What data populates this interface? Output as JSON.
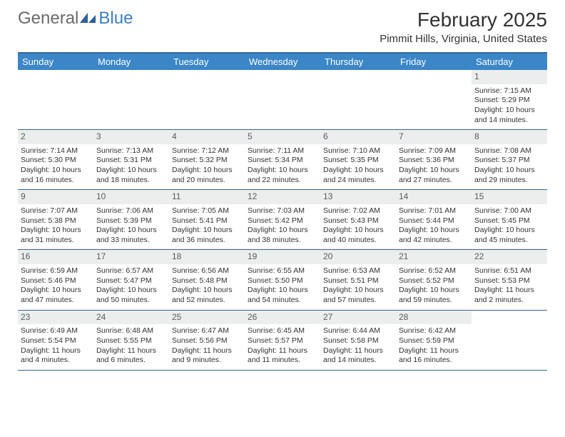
{
  "logo": {
    "text1": "General",
    "text2": "Blue"
  },
  "title": "February 2025",
  "location": "Pimmit Hills, Virginia, United States",
  "daynames": [
    "Sunday",
    "Monday",
    "Tuesday",
    "Wednesday",
    "Thursday",
    "Friday",
    "Saturday"
  ],
  "colors": {
    "header_bar": "#3b86c7",
    "rule": "#34679e",
    "daynum_bg": "#eceeee",
    "text": "#333333",
    "logo_gray": "#6a6a6a",
    "logo_blue": "#3b7fc4"
  },
  "weeks": [
    [
      null,
      null,
      null,
      null,
      null,
      null,
      {
        "n": "1",
        "sunrise": "7:15 AM",
        "sunset": "5:29 PM",
        "daylight": "10 hours and 14 minutes."
      }
    ],
    [
      {
        "n": "2",
        "sunrise": "7:14 AM",
        "sunset": "5:30 PM",
        "daylight": "10 hours and 16 minutes."
      },
      {
        "n": "3",
        "sunrise": "7:13 AM",
        "sunset": "5:31 PM",
        "daylight": "10 hours and 18 minutes."
      },
      {
        "n": "4",
        "sunrise": "7:12 AM",
        "sunset": "5:32 PM",
        "daylight": "10 hours and 20 minutes."
      },
      {
        "n": "5",
        "sunrise": "7:11 AM",
        "sunset": "5:34 PM",
        "daylight": "10 hours and 22 minutes."
      },
      {
        "n": "6",
        "sunrise": "7:10 AM",
        "sunset": "5:35 PM",
        "daylight": "10 hours and 24 minutes."
      },
      {
        "n": "7",
        "sunrise": "7:09 AM",
        "sunset": "5:36 PM",
        "daylight": "10 hours and 27 minutes."
      },
      {
        "n": "8",
        "sunrise": "7:08 AM",
        "sunset": "5:37 PM",
        "daylight": "10 hours and 29 minutes."
      }
    ],
    [
      {
        "n": "9",
        "sunrise": "7:07 AM",
        "sunset": "5:38 PM",
        "daylight": "10 hours and 31 minutes."
      },
      {
        "n": "10",
        "sunrise": "7:06 AM",
        "sunset": "5:39 PM",
        "daylight": "10 hours and 33 minutes."
      },
      {
        "n": "11",
        "sunrise": "7:05 AM",
        "sunset": "5:41 PM",
        "daylight": "10 hours and 36 minutes."
      },
      {
        "n": "12",
        "sunrise": "7:03 AM",
        "sunset": "5:42 PM",
        "daylight": "10 hours and 38 minutes."
      },
      {
        "n": "13",
        "sunrise": "7:02 AM",
        "sunset": "5:43 PM",
        "daylight": "10 hours and 40 minutes."
      },
      {
        "n": "14",
        "sunrise": "7:01 AM",
        "sunset": "5:44 PM",
        "daylight": "10 hours and 42 minutes."
      },
      {
        "n": "15",
        "sunrise": "7:00 AM",
        "sunset": "5:45 PM",
        "daylight": "10 hours and 45 minutes."
      }
    ],
    [
      {
        "n": "16",
        "sunrise": "6:59 AM",
        "sunset": "5:46 PM",
        "daylight": "10 hours and 47 minutes."
      },
      {
        "n": "17",
        "sunrise": "6:57 AM",
        "sunset": "5:47 PM",
        "daylight": "10 hours and 50 minutes."
      },
      {
        "n": "18",
        "sunrise": "6:56 AM",
        "sunset": "5:48 PM",
        "daylight": "10 hours and 52 minutes."
      },
      {
        "n": "19",
        "sunrise": "6:55 AM",
        "sunset": "5:50 PM",
        "daylight": "10 hours and 54 minutes."
      },
      {
        "n": "20",
        "sunrise": "6:53 AM",
        "sunset": "5:51 PM",
        "daylight": "10 hours and 57 minutes."
      },
      {
        "n": "21",
        "sunrise": "6:52 AM",
        "sunset": "5:52 PM",
        "daylight": "10 hours and 59 minutes."
      },
      {
        "n": "22",
        "sunrise": "6:51 AM",
        "sunset": "5:53 PM",
        "daylight": "11 hours and 2 minutes."
      }
    ],
    [
      {
        "n": "23",
        "sunrise": "6:49 AM",
        "sunset": "5:54 PM",
        "daylight": "11 hours and 4 minutes."
      },
      {
        "n": "24",
        "sunrise": "6:48 AM",
        "sunset": "5:55 PM",
        "daylight": "11 hours and 6 minutes."
      },
      {
        "n": "25",
        "sunrise": "6:47 AM",
        "sunset": "5:56 PM",
        "daylight": "11 hours and 9 minutes."
      },
      {
        "n": "26",
        "sunrise": "6:45 AM",
        "sunset": "5:57 PM",
        "daylight": "11 hours and 11 minutes."
      },
      {
        "n": "27",
        "sunrise": "6:44 AM",
        "sunset": "5:58 PM",
        "daylight": "11 hours and 14 minutes."
      },
      {
        "n": "28",
        "sunrise": "6:42 AM",
        "sunset": "5:59 PM",
        "daylight": "11 hours and 16 minutes."
      },
      null
    ]
  ],
  "labels": {
    "sunrise": "Sunrise: ",
    "sunset": "Sunset: ",
    "daylight": "Daylight: "
  }
}
